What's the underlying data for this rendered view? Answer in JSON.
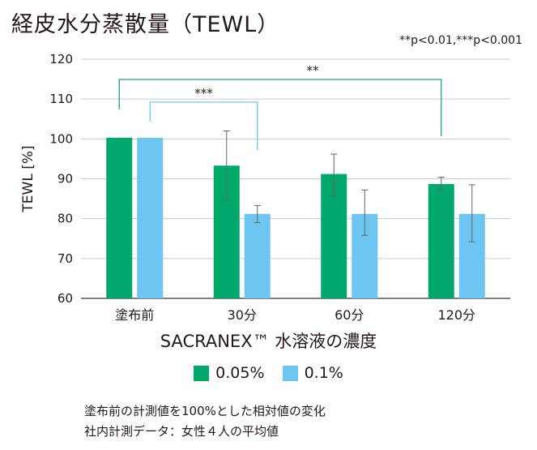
{
  "title": "経皮水分蒸散量（TEWL）",
  "significance_legend": "**p<0.01,***p<0.001",
  "notes": [
    "塗布前の計測値を100%とした相対値の変化",
    "社内計測データ：女性４人の平均値"
  ],
  "chart_data": {
    "type": "bar",
    "title": "経皮水分蒸散量（TEWL）",
    "xlabel": "SACRANEX™ 水溶液の濃度",
    "ylabel": "TEWL [%]",
    "ylim": [
      60,
      120
    ],
    "yticks": [
      60,
      70,
      80,
      90,
      100,
      110,
      120
    ],
    "grid": true,
    "legend_position": "bottom",
    "categories": [
      "塗布前",
      "30分",
      "60分",
      "120分"
    ],
    "series": [
      {
        "name": "0.05%",
        "color": "#00a86b",
        "values": [
          100.3,
          93.3,
          91.2,
          88.7
        ],
        "error_low": [
          null,
          84.6,
          85.5,
          87.3
        ],
        "error_high": [
          null,
          102.0,
          96.2,
          90.4
        ]
      },
      {
        "name": "0.1%",
        "color": "#6cc6f1",
        "values": [
          100.3,
          81.2,
          81.2,
          81.2
        ],
        "error_low": [
          null,
          79.0,
          75.8,
          74.2
        ],
        "error_high": [
          null,
          83.3,
          87.2,
          88.5
        ]
      }
    ],
    "annotations": [
      {
        "label": "**",
        "from": {
          "category": 0,
          "series": 0
        },
        "to": {
          "category": 3,
          "series": 0
        },
        "color": "#1aa387"
      },
      {
        "label": "***",
        "from": {
          "category": 0,
          "series": 1
        },
        "to": {
          "category": 1,
          "series": 1
        },
        "color": "#6cc6f1"
      }
    ]
  }
}
